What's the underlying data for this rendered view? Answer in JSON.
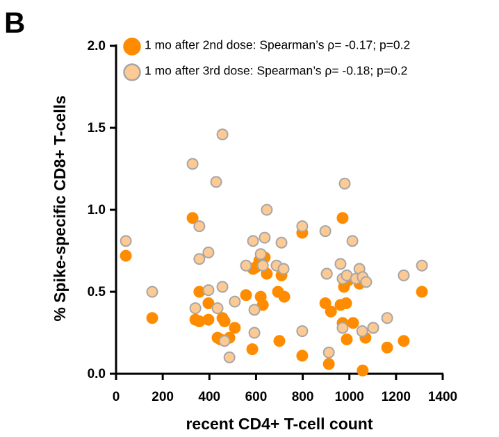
{
  "chart_data": {
    "type": "scatter",
    "title": "B",
    "xlabel": "recent CD4+ T-cell count",
    "ylabel": "% Spike-specific CD8+ T-cells",
    "xlim": [
      0,
      1400
    ],
    "ylim": [
      0,
      2
    ],
    "xticks": [
      0,
      200,
      400,
      600,
      800,
      1000,
      1200,
      1400
    ],
    "yticks": [
      {
        "value": 0,
        "label": "0.0"
      },
      0.5,
      {
        "value": 1,
        "label": "1.0"
      },
      1.5,
      {
        "value": 2,
        "label": "2.0"
      }
    ],
    "series": [
      {
        "name": "1 mo after 2nd dose: Spearman’s ρ= -0.17; p=0.2",
        "color": "#ff8c00",
        "edgecolor": "#ff8c00",
        "x": [
          42,
          155,
          328,
          340,
          357,
          357,
          396,
          396,
          435,
          447,
          456,
          465,
          486,
          509,
          557,
          584,
          587,
          599,
          614,
          620,
          629,
          637,
          646,
          694,
          700,
          709,
          721,
          798,
          798,
          897,
          903,
          912,
          921,
          962,
          971,
          971,
          977,
          986,
          989,
          995,
          1016,
          1034,
          1043,
          1057,
          1069,
          1102,
          1162,
          1233,
          1311
        ],
        "values": [
          0.72,
          0.34,
          0.95,
          0.33,
          0.5,
          0.32,
          0.33,
          0.43,
          0.22,
          0.21,
          0.34,
          0.32,
          0.22,
          0.28,
          0.48,
          0.15,
          0.64,
          0.65,
          0.69,
          0.47,
          0.42,
          0.71,
          0.61,
          0.5,
          0.2,
          0.6,
          0.47,
          0.86,
          0.11,
          0.43,
          0.61,
          0.06,
          0.38,
          0.42,
          0.95,
          0.31,
          0.53,
          0.43,
          0.21,
          0.57,
          0.31,
          0.58,
          0.55,
          0.02,
          0.22,
          0.28,
          0.16,
          0.2,
          0.5
        ]
      },
      {
        "name": "1 mo after 3rd dose: Spearman’s ρ= -0.18; p=0.2",
        "color": "#fdca94",
        "edgecolor": "#a6a6a6",
        "x": [
          42,
          155,
          328,
          340,
          357,
          357,
          396,
          396,
          429,
          435,
          456,
          456,
          465,
          486,
          509,
          557,
          587,
          593,
          593,
          620,
          629,
          637,
          646,
          688,
          709,
          718,
          798,
          798,
          897,
          903,
          912,
          962,
          971,
          971,
          980,
          989,
          1013,
          1028,
          1043,
          1055,
          1057,
          1072,
          1102,
          1162,
          1233,
          1311
        ],
        "values": [
          0.81,
          0.5,
          1.28,
          0.4,
          0.9,
          0.7,
          0.74,
          0.51,
          1.17,
          0.4,
          1.46,
          0.53,
          0.2,
          0.1,
          0.44,
          0.66,
          0.81,
          0.25,
          0.39,
          0.73,
          0.66,
          0.83,
          1.0,
          0.66,
          0.8,
          0.64,
          0.9,
          0.26,
          0.87,
          0.61,
          0.13,
          0.67,
          0.58,
          0.28,
          1.16,
          0.6,
          0.81,
          0.58,
          0.64,
          0.26,
          0.59,
          0.56,
          0.28,
          0.34,
          0.6,
          0.66
        ]
      }
    ]
  }
}
